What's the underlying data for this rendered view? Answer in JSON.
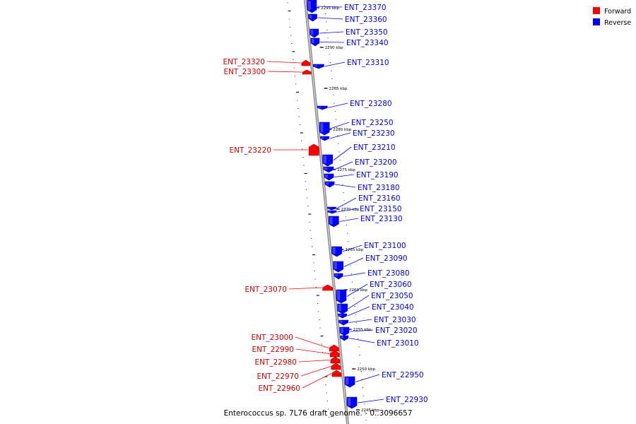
{
  "caption": "Enterococcus sp. 7L76 draft genome. - 0..3096657",
  "colors": {
    "forward": "#ff0000",
    "forward_text": "#cc0000",
    "reverse": "#0000ff",
    "reverse_text": "#0000cc",
    "backbone": "#8a8a8a"
  },
  "legend": [
    {
      "label": "Forward",
      "color": "#ff0000"
    },
    {
      "label": "Reverse",
      "color": "#0000ff"
    }
  ],
  "scale_labels": [
    "2295 kbp",
    "2290 kbp",
    "2285 kbp",
    "2280 kbp",
    "2275 kbp",
    "2270 kbp",
    "2265 kbp",
    "2260 kbp",
    "2255 kbp",
    "2250 kbp",
    "2245 kbp"
  ],
  "reverse_genes": [
    "ENT_23370",
    "ENT_23360",
    "ENT_23350",
    "ENT_23340",
    "ENT_23310",
    "ENT_23280",
    "ENT_23250",
    "ENT_23230",
    "ENT_23210",
    "ENT_23200",
    "ENT_23190",
    "ENT_23180",
    "ENT_23160",
    "ENT_23150",
    "ENT_23130",
    "ENT_23100",
    "ENT_23090",
    "ENT_23080",
    "ENT_23060",
    "ENT_23050",
    "ENT_23040",
    "ENT_23030",
    "ENT_23020",
    "ENT_23010",
    "ENT_22950",
    "ENT_22930"
  ],
  "forward_genes": [
    "ENT_23320",
    "ENT_23300",
    "ENT_23220",
    "ENT_23070",
    "ENT_23000",
    "ENT_22990",
    "ENT_22980",
    "ENT_22970",
    "ENT_22960"
  ]
}
